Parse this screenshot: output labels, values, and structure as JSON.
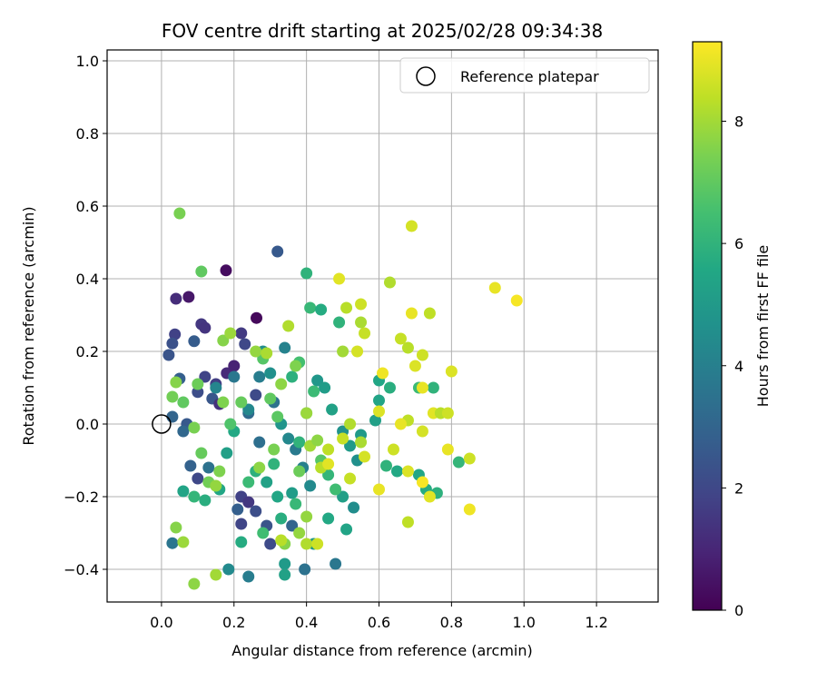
{
  "chart_data": {
    "type": "scatter",
    "title": "FOV centre drift starting at 2025/02/28 09:34:38",
    "xlabel": "Angular distance from reference (arcmin)",
    "ylabel": "Rotation from reference (arcmin)",
    "xlim": [
      -0.15,
      1.37
    ],
    "ylim": [
      -0.49,
      1.03
    ],
    "x_ticks": [
      0.0,
      0.2,
      0.4,
      0.6,
      0.8,
      1.0,
      1.2
    ],
    "x_tick_labels": [
      "0.0",
      "0.2",
      "0.4",
      "0.6",
      "0.8",
      "1.0",
      "1.2"
    ],
    "y_ticks": [
      -0.4,
      -0.2,
      0.0,
      0.2,
      0.4,
      0.6,
      0.8,
      1.0
    ],
    "y_tick_labels": [
      "−0.4",
      "−0.2",
      "0.0",
      "0.2",
      "0.4",
      "0.6",
      "0.8",
      "1.0"
    ],
    "grid": true,
    "legend": {
      "position": "top-right",
      "entries": [
        "Reference platepar"
      ]
    },
    "colorbar": {
      "label": "Hours from first FF file",
      "min": 0,
      "max": 9.3,
      "ticks": [
        0,
        2,
        4,
        6,
        8
      ],
      "tick_labels": [
        "0",
        "2",
        "4",
        "6",
        "8"
      ],
      "colormap": "viridis"
    },
    "reference_point": {
      "x": 0.0,
      "y": 0.0
    },
    "series": [
      {
        "points": [
          [
            0.178,
            0.423,
            0.3
          ],
          [
            0.262,
            0.292,
            0.2
          ],
          [
            0.075,
            0.35,
            0.6
          ],
          [
            0.04,
            0.345,
            1.2
          ],
          [
            0.11,
            0.275,
            1.5
          ],
          [
            0.037,
            0.247,
            1.8
          ],
          [
            0.32,
            0.475,
            2.6
          ],
          [
            0.02,
            0.19,
            2.4
          ],
          [
            0.03,
            0.222,
            2.3
          ],
          [
            0.09,
            0.228,
            2.7
          ],
          [
            0.12,
            0.265,
            1.4
          ],
          [
            0.22,
            0.25,
            1.6
          ],
          [
            0.23,
            0.22,
            2.0
          ],
          [
            0.18,
            0.14,
            1.1
          ],
          [
            0.2,
            0.16,
            0.9
          ],
          [
            0.15,
            0.11,
            1.7
          ],
          [
            0.12,
            0.13,
            1.9
          ],
          [
            0.05,
            0.125,
            2.8
          ],
          [
            0.1,
            0.088,
            2.2
          ],
          [
            0.14,
            0.07,
            2.5
          ],
          [
            0.16,
            0.055,
            1.3
          ],
          [
            0.17,
            0.06,
            7.5
          ],
          [
            0.26,
            0.08,
            2.1
          ],
          [
            0.03,
            0.02,
            3.0
          ],
          [
            0.07,
            0.0,
            2.6
          ],
          [
            0.06,
            -0.02,
            3.1
          ],
          [
            0.24,
            0.03,
            3.2
          ],
          [
            0.27,
            -0.05,
            3.4
          ],
          [
            0.08,
            -0.115,
            2.9
          ],
          [
            0.1,
            -0.15,
            2.0
          ],
          [
            0.13,
            -0.12,
            3.5
          ],
          [
            0.22,
            -0.2,
            1.8
          ],
          [
            0.24,
            -0.215,
            1.5
          ],
          [
            0.26,
            -0.24,
            2.2
          ],
          [
            0.22,
            -0.275,
            1.9
          ],
          [
            0.29,
            -0.28,
            2.4
          ],
          [
            0.03,
            -0.328,
            3.6
          ],
          [
            0.21,
            -0.235,
            2.8
          ],
          [
            0.3,
            -0.33,
            2.1
          ],
          [
            0.36,
            -0.28,
            3.0
          ],
          [
            0.48,
            -0.385,
            3.7
          ],
          [
            0.395,
            -0.4,
            3.5
          ],
          [
            0.24,
            -0.42,
            3.9
          ],
          [
            0.185,
            -0.4,
            4.4
          ],
          [
            0.15,
            0.1,
            4.2
          ],
          [
            0.2,
            0.13,
            3.7
          ],
          [
            0.27,
            0.13,
            3.9
          ],
          [
            0.24,
            0.04,
            4.3
          ],
          [
            0.3,
            0.14,
            4.6
          ],
          [
            0.34,
            0.21,
            4.1
          ],
          [
            0.28,
            0.2,
            4.5
          ],
          [
            0.31,
            0.06,
            3.5
          ],
          [
            0.33,
            0.0,
            4.8
          ],
          [
            0.35,
            -0.04,
            4.3
          ],
          [
            0.37,
            -0.07,
            3.8
          ],
          [
            0.39,
            -0.12,
            4.0
          ],
          [
            0.41,
            -0.17,
            4.4
          ],
          [
            0.43,
            0.12,
            4.9
          ],
          [
            0.45,
            0.1,
            5.1
          ],
          [
            0.47,
            0.04,
            5.3
          ],
          [
            0.5,
            -0.02,
            4.7
          ],
          [
            0.52,
            -0.06,
            5.0
          ],
          [
            0.54,
            -0.1,
            4.6
          ],
          [
            0.5,
            -0.2,
            5.2
          ],
          [
            0.53,
            -0.23,
            4.5
          ],
          [
            0.51,
            -0.29,
            5.4
          ],
          [
            0.46,
            -0.26,
            5.6
          ],
          [
            0.42,
            -0.33,
            4.9
          ],
          [
            0.36,
            -0.19,
            5.1
          ],
          [
            0.32,
            -0.2,
            5.5
          ],
          [
            0.34,
            -0.385,
            5.0
          ],
          [
            0.34,
            -0.415,
            5.3
          ],
          [
            0.2,
            -0.02,
            5.6
          ],
          [
            0.18,
            -0.08,
            5.2
          ],
          [
            0.16,
            -0.18,
            5.5
          ],
          [
            0.12,
            -0.21,
            5.8
          ],
          [
            0.09,
            -0.2,
            6.1
          ],
          [
            0.06,
            -0.185,
            5.4
          ],
          [
            0.22,
            -0.325,
            5.7
          ],
          [
            0.26,
            -0.13,
            5.9
          ],
          [
            0.31,
            -0.11,
            6.0
          ],
          [
            0.29,
            -0.16,
            5.3
          ],
          [
            0.33,
            -0.26,
            5.8
          ],
          [
            0.37,
            -0.22,
            6.2
          ],
          [
            0.28,
            -0.3,
            6.4
          ],
          [
            0.24,
            -0.16,
            6.3
          ],
          [
            0.4,
            0.415,
            6.0
          ],
          [
            0.41,
            0.32,
            6.2
          ],
          [
            0.44,
            0.315,
            5.7
          ],
          [
            0.38,
            0.17,
            6.5
          ],
          [
            0.36,
            0.13,
            5.9
          ],
          [
            0.42,
            0.09,
            6.3
          ],
          [
            0.4,
            0.03,
            6.6
          ],
          [
            0.38,
            -0.05,
            6.0
          ],
          [
            0.44,
            -0.1,
            6.8
          ],
          [
            0.46,
            -0.14,
            6.1
          ],
          [
            0.48,
            -0.18,
            6.4
          ],
          [
            0.6,
            0.065,
            5.4
          ],
          [
            0.6,
            0.12,
            5.5
          ],
          [
            0.63,
            0.1,
            5.8
          ],
          [
            0.62,
            -0.115,
            6.0
          ],
          [
            0.65,
            -0.13,
            5.6
          ],
          [
            0.71,
            -0.14,
            5.5
          ],
          [
            0.73,
            -0.18,
            5.7
          ],
          [
            0.76,
            -0.19,
            5.9
          ],
          [
            0.82,
            -0.105,
            6.1
          ],
          [
            0.75,
            0.1,
            6.0
          ],
          [
            0.71,
            0.1,
            6.3
          ],
          [
            0.59,
            0.01,
            5.2
          ],
          [
            0.55,
            -0.03,
            5.0
          ],
          [
            0.49,
            0.28,
            6.0
          ],
          [
            0.28,
            0.18,
            6.8
          ],
          [
            0.3,
            0.07,
            7.0
          ],
          [
            0.32,
            0.02,
            6.9
          ],
          [
            0.22,
            0.06,
            7.1
          ],
          [
            0.19,
            0.0,
            6.7
          ],
          [
            0.1,
            0.11,
            7.2
          ],
          [
            0.06,
            0.06,
            7.0
          ],
          [
            0.03,
            0.075,
            7.3
          ],
          [
            0.04,
            0.115,
            7.6
          ],
          [
            0.05,
            0.58,
            7.4
          ],
          [
            0.11,
            0.42,
            7.0
          ],
          [
            0.17,
            0.23,
            7.6
          ],
          [
            0.19,
            0.25,
            7.9
          ],
          [
            0.26,
            0.2,
            7.8
          ],
          [
            0.29,
            0.195,
            8.1
          ],
          [
            0.33,
            0.11,
            7.7
          ],
          [
            0.35,
            0.27,
            8.2
          ],
          [
            0.37,
            0.16,
            7.5
          ],
          [
            0.4,
            0.03,
            7.9
          ],
          [
            0.41,
            -0.06,
            8.0
          ],
          [
            0.43,
            -0.045,
            7.7
          ],
          [
            0.44,
            -0.12,
            8.3
          ],
          [
            0.46,
            -0.07,
            8.4
          ],
          [
            0.5,
            -0.04,
            8.5
          ],
          [
            0.13,
            -0.16,
            7.3
          ],
          [
            0.15,
            -0.17,
            7.8
          ],
          [
            0.16,
            -0.13,
            7.5
          ],
          [
            0.11,
            -0.08,
            7.1
          ],
          [
            0.09,
            -0.01,
            7.4
          ],
          [
            0.04,
            -0.285,
            7.6
          ],
          [
            0.06,
            -0.325,
            7.9
          ],
          [
            0.09,
            -0.44,
            7.7
          ],
          [
            0.15,
            -0.415,
            8.0
          ],
          [
            0.34,
            -0.33,
            7.6
          ],
          [
            0.38,
            -0.3,
            7.8
          ],
          [
            0.4,
            -0.33,
            8.2
          ],
          [
            0.38,
            -0.13,
            7.2
          ],
          [
            0.31,
            -0.07,
            7.4
          ],
          [
            0.27,
            -0.12,
            7.7
          ],
          [
            0.51,
            0.32,
            8.3
          ],
          [
            0.55,
            0.33,
            8.6
          ],
          [
            0.54,
            0.2,
            8.7
          ],
          [
            0.56,
            0.25,
            8.5
          ],
          [
            0.5,
            0.2,
            8.0
          ],
          [
            0.55,
            0.28,
            8.1
          ],
          [
            0.49,
            0.4,
            8.9
          ],
          [
            0.63,
            0.39,
            8.2
          ],
          [
            0.69,
            0.305,
            9.0
          ],
          [
            0.74,
            0.305,
            8.4
          ],
          [
            0.66,
            0.235,
            8.5
          ],
          [
            0.68,
            0.21,
            8.3
          ],
          [
            0.7,
            0.16,
            8.8
          ],
          [
            0.69,
            0.545,
            8.7
          ],
          [
            0.72,
            0.19,
            8.6
          ],
          [
            0.61,
            0.14,
            9.1
          ],
          [
            0.72,
            0.1,
            9.0
          ],
          [
            0.75,
            0.03,
            8.9
          ],
          [
            0.77,
            0.03,
            8.3
          ],
          [
            0.79,
            0.03,
            8.6
          ],
          [
            0.68,
            0.01,
            8.4
          ],
          [
            0.72,
            -0.02,
            8.7
          ],
          [
            0.66,
            0.0,
            9.0
          ],
          [
            0.6,
            0.035,
            8.8
          ],
          [
            0.52,
            0.0,
            8.2
          ],
          [
            0.55,
            -0.05,
            8.1
          ],
          [
            0.56,
            -0.09,
            8.7
          ],
          [
            0.52,
            -0.15,
            8.5
          ],
          [
            0.6,
            -0.18,
            9.0
          ],
          [
            0.64,
            -0.07,
            8.6
          ],
          [
            0.68,
            -0.13,
            8.8
          ],
          [
            0.72,
            -0.16,
            9.2
          ],
          [
            0.74,
            -0.2,
            8.9
          ],
          [
            0.68,
            -0.27,
            8.4
          ],
          [
            0.79,
            -0.07,
            9.0
          ],
          [
            0.85,
            -0.235,
            9.1
          ],
          [
            0.85,
            -0.095,
            8.6
          ],
          [
            0.8,
            0.145,
            8.8
          ],
          [
            0.92,
            0.375,
            9.0
          ],
          [
            0.98,
            0.34,
            9.2
          ],
          [
            0.4,
            -0.255,
            7.8
          ],
          [
            0.46,
            -0.11,
            8.9
          ],
          [
            0.43,
            -0.33,
            8.6
          ],
          [
            0.33,
            -0.32,
            8.3
          ]
        ]
      }
    ]
  }
}
